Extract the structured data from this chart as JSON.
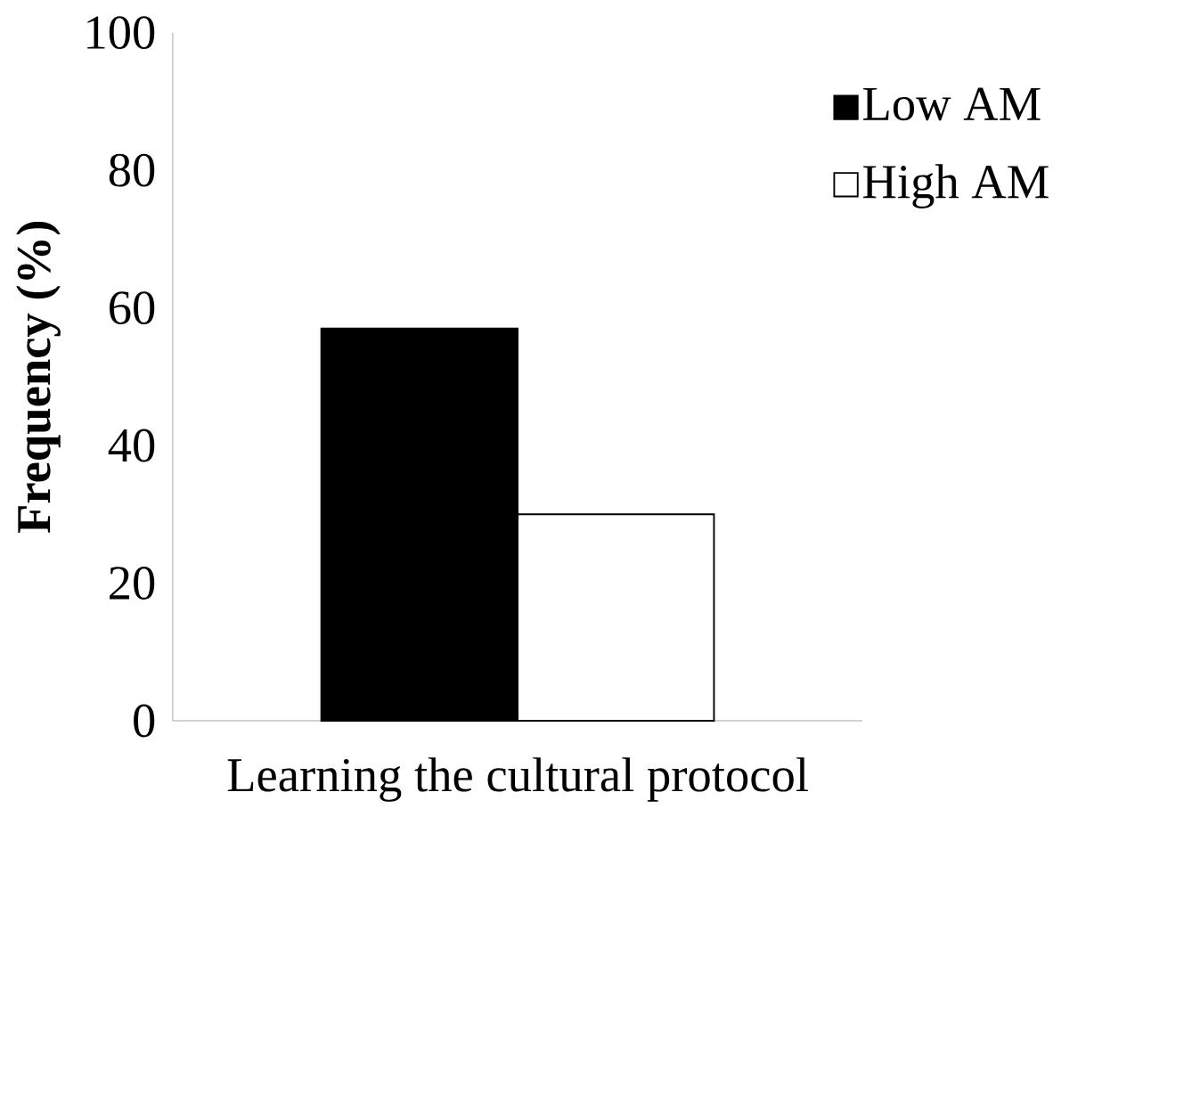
{
  "chart_data": {
    "type": "bar",
    "ylabel": "Frequency (%)",
    "categories": [
      "Learning the cultural protocol"
    ],
    "series": [
      {
        "name": "Low AM",
        "color": "#000000",
        "values": [
          57
        ]
      },
      {
        "name": "High AM",
        "color": "#ffffff",
        "values": [
          30
        ]
      }
    ],
    "ylim": [
      0,
      100
    ],
    "yticks": [
      0,
      20,
      40,
      60,
      80,
      100
    ],
    "grid": false,
    "legend": "top right"
  }
}
